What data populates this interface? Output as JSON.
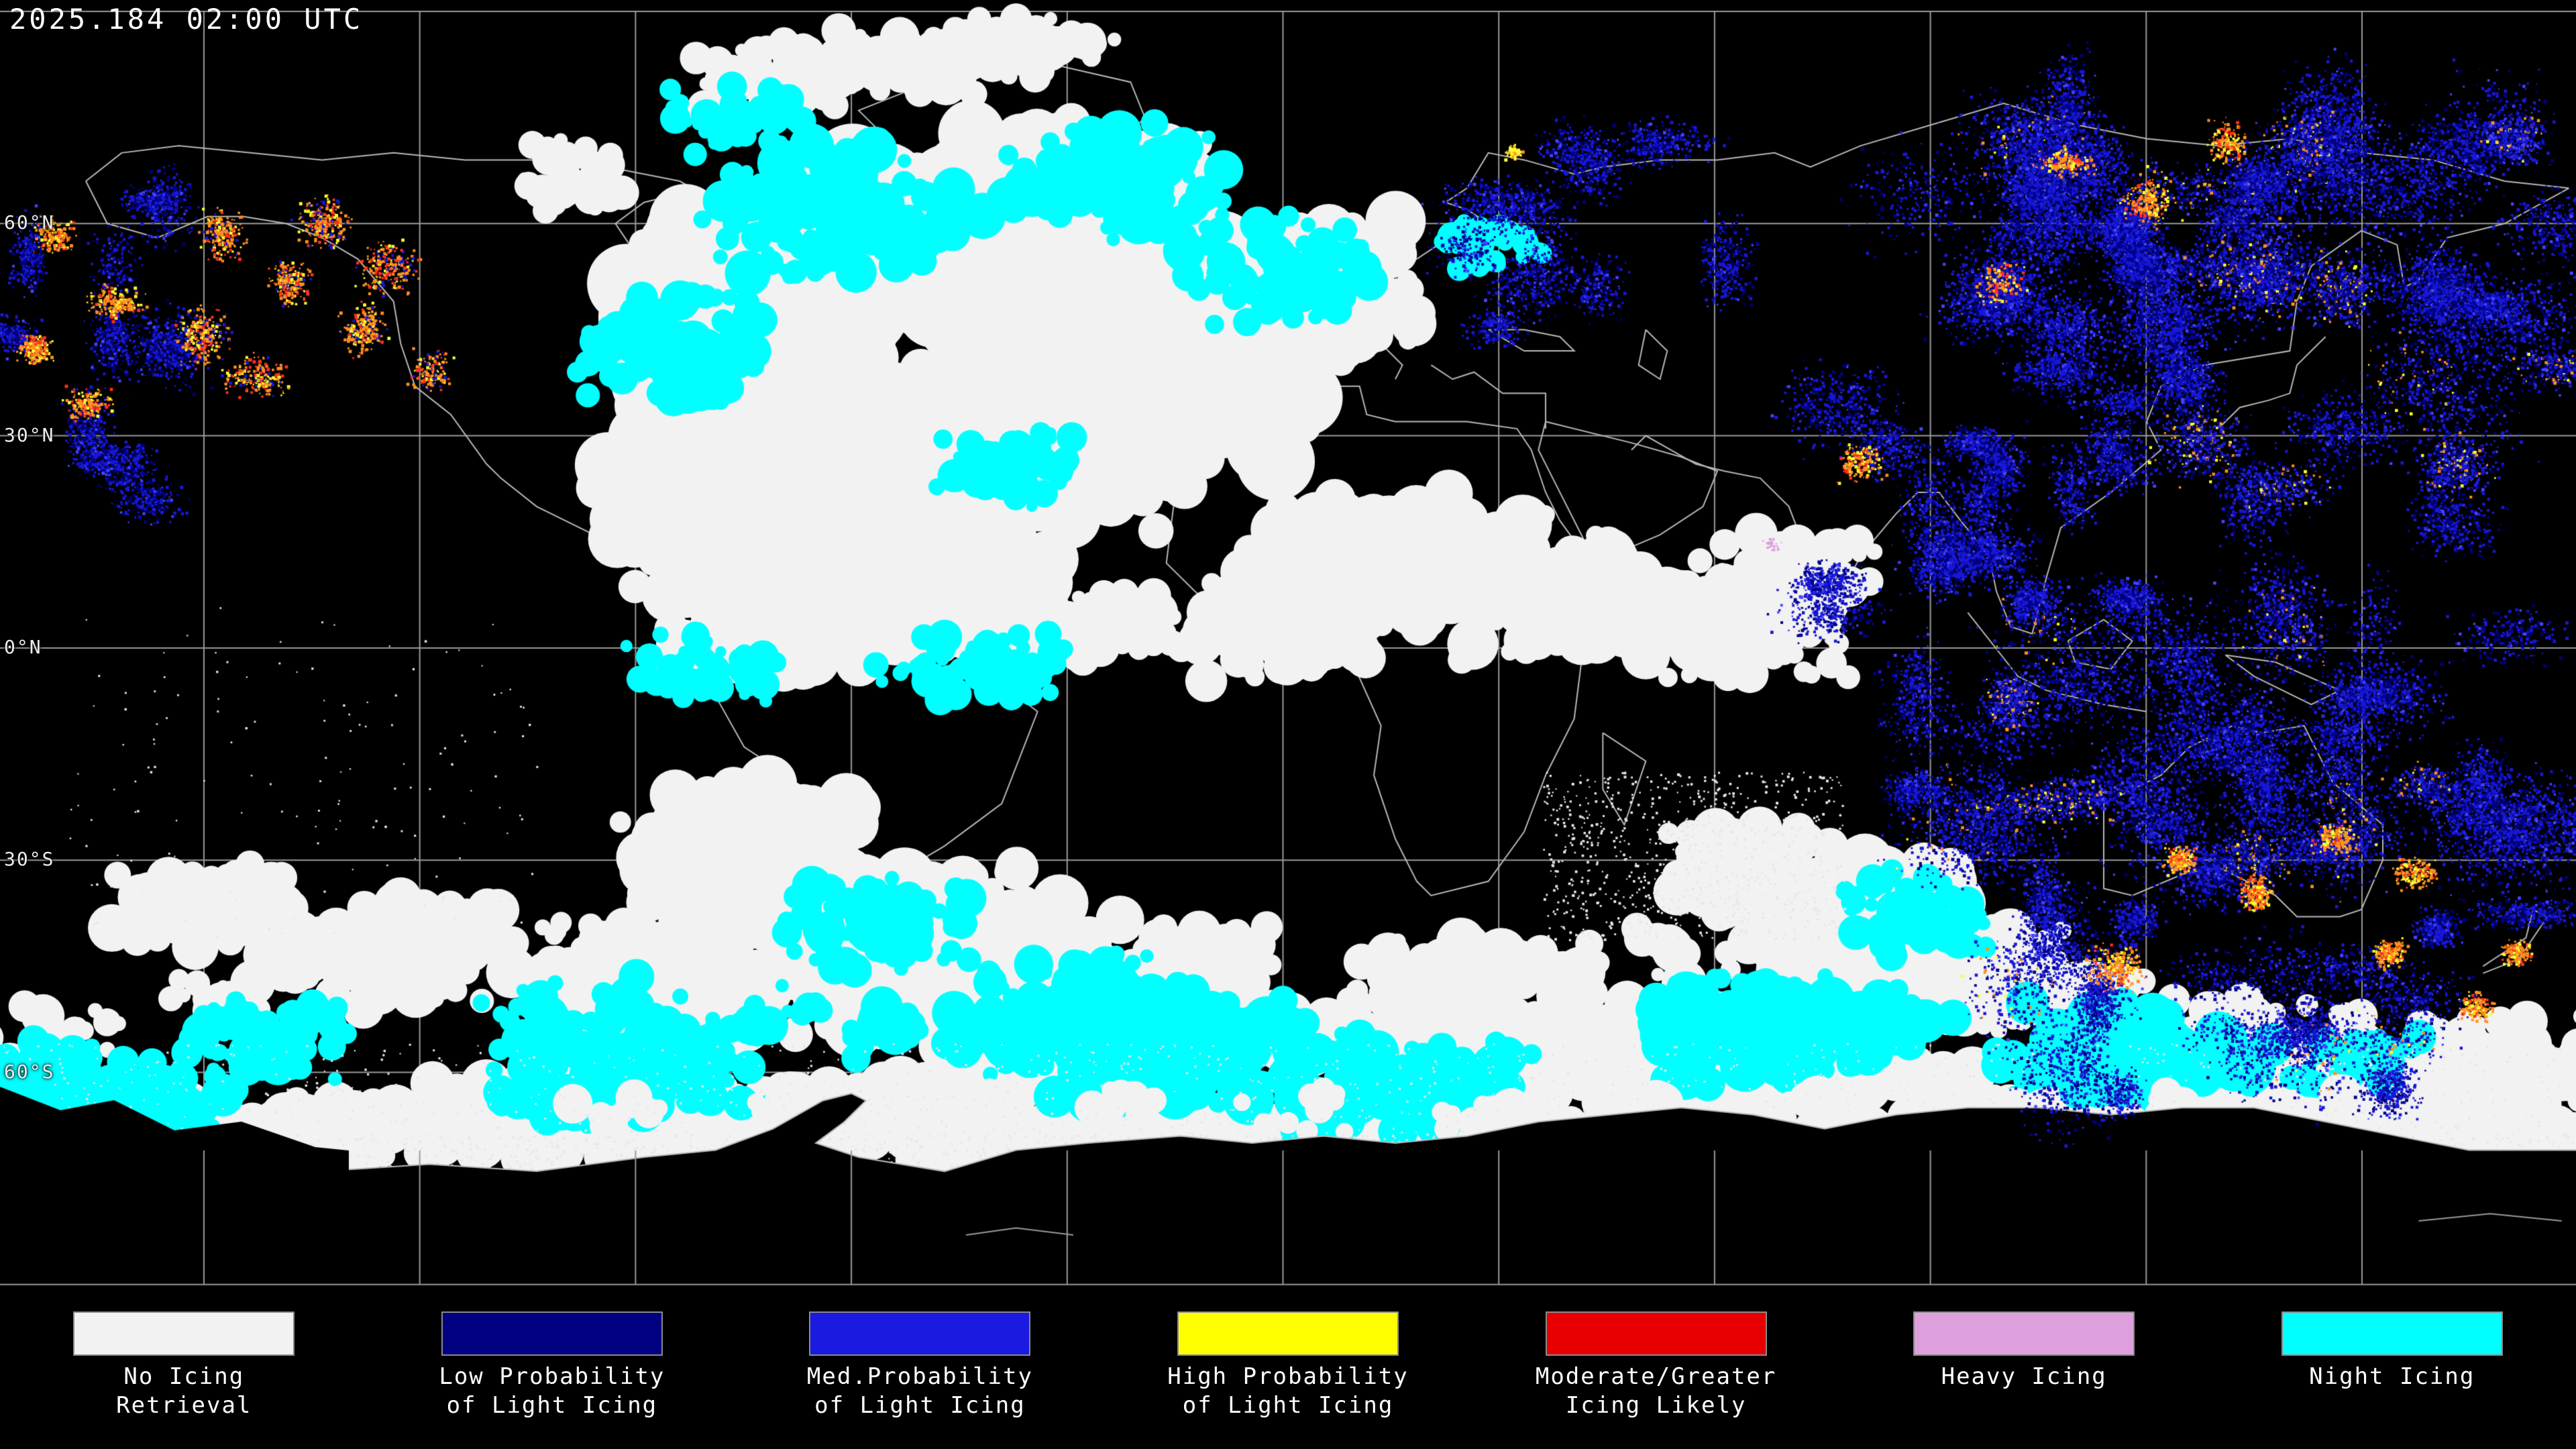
{
  "header": {
    "timestamp": "2025.184 02:00 UTC"
  },
  "map": {
    "latitude_labels": [
      {
        "label": "60°N",
        "lat": 60
      },
      {
        "label": "30°N",
        "lat": 30
      },
      {
        "label": "0°N",
        "lat": 0
      },
      {
        "label": "30°S",
        "lat": -30
      },
      {
        "label": "60°S",
        "lat": -60
      }
    ],
    "grid": {
      "lat_spacing_deg": 30,
      "lon_spacing_deg": 30,
      "line_color": "#9a9a9a"
    },
    "background_color": "#000000",
    "coastline_color": "#b8b8b8"
  },
  "legend": {
    "items": [
      {
        "name": "no-icing-retrieval",
        "color": "#f2f2f2",
        "label_lines": [
          "No Icing",
          "Retrieval"
        ]
      },
      {
        "name": "low-probability-light-icing",
        "color": "#000080",
        "label_lines": [
          "Low Probability",
          "of Light Icing"
        ]
      },
      {
        "name": "med-probability-light-icing",
        "color": "#1a1ae0",
        "label_lines": [
          "Med.Probability",
          "of Light Icing"
        ]
      },
      {
        "name": "high-probability-light-icing",
        "color": "#ffff00",
        "label_lines": [
          "High Probability",
          "of Light Icing"
        ]
      },
      {
        "name": "moderate-greater-icing",
        "color": "#e80000",
        "label_lines": [
          "Moderate/Greater",
          "Icing Likely"
        ]
      },
      {
        "name": "heavy-icing",
        "color": "#dda0dd",
        "label_lines": [
          "Heavy Icing"
        ]
      },
      {
        "name": "night-icing",
        "color": "#00ffff",
        "label_lines": [
          "Night Icing"
        ]
      }
    ]
  }
}
